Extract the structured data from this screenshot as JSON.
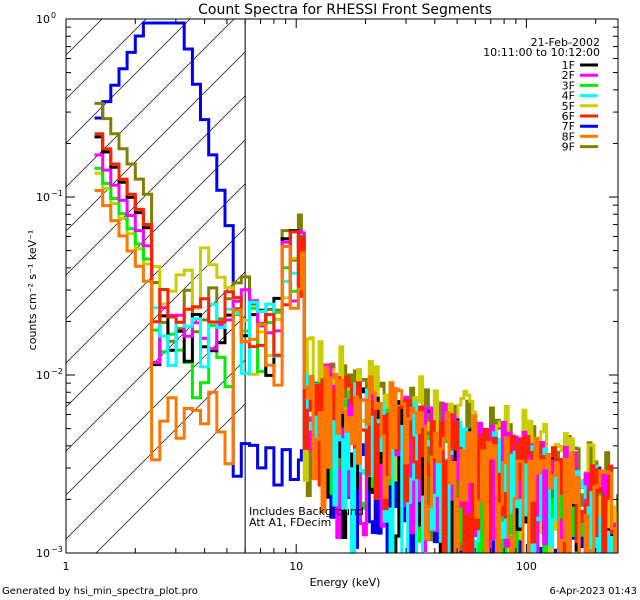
{
  "chart_data": {
    "type": "line",
    "title": "Count Spectra for RHESSI Front Segments",
    "xlabel": "Energy (keV)",
    "ylabel": "counts cm⁻² s⁻¹ keV⁻¹",
    "xscale": "log",
    "yscale": "log",
    "xlim": [
      1,
      250
    ],
    "ylim": [
      0.001,
      1
    ],
    "x_ticks": [
      {
        "v": 1,
        "label": "1"
      },
      {
        "v": 10,
        "label": "10"
      },
      {
        "v": 100,
        "label": "100"
      }
    ],
    "y_ticks": [
      {
        "v": 0.001,
        "base": "10",
        "exp": "−3"
      },
      {
        "v": 0.01,
        "base": "10",
        "exp": "−2"
      },
      {
        "v": 0.1,
        "base": "10",
        "exp": "−1"
      },
      {
        "v": 1,
        "base": "10",
        "exp": "0"
      }
    ],
    "legend_position": "top-right",
    "date": "21-Feb-2002",
    "time_range": "10:11:00 to 10:12:00",
    "annotations": [
      "Includes Background",
      "Att A1, FDecim"
    ],
    "shaded_region_max_energy": 6,
    "series": [
      {
        "name": "1F",
        "color": "#000000",
        "base": 0.24,
        "peak": 0.055,
        "knee": 0.014,
        "tail": 0.006
      },
      {
        "name": "2F",
        "color": "#ff00ff",
        "base": 0.19,
        "peak": 0.06,
        "knee": 0.018,
        "tail": 0.007
      },
      {
        "name": "3F",
        "color": "#00ee00",
        "base": 0.16,
        "peak": 0.05,
        "knee": 0.012,
        "tail": 0.0055
      },
      {
        "name": "4F",
        "color": "#00ffff",
        "base": 0.12,
        "peak": 0.05,
        "knee": 0.018,
        "tail": 0.006
      },
      {
        "name": "5F",
        "color": "#cccc00",
        "base": 0.15,
        "peak": 0.05,
        "knee": 0.035,
        "tail": 0.009
      },
      {
        "name": "6F",
        "color": "#ff2200",
        "base": 0.25,
        "peak": 0.06,
        "knee": 0.02,
        "tail": 0.0065
      },
      {
        "name": "7F",
        "color": "#0000ee",
        "base": 0.25,
        "peak": 0.8,
        "knee": 0.002,
        "tail": 0.004
      },
      {
        "name": "8F",
        "color": "#ff7700",
        "base": 0.12,
        "peak": 0.05,
        "knee": 0.005,
        "tail": 0.007
      },
      {
        "name": "9F",
        "color": "#808000",
        "base": 0.37,
        "peak": 0.07,
        "knee": 0.022,
        "tail": 0.008
      }
    ]
  },
  "footer": {
    "left": "Generated by hsi_min_spectra_plot.pro",
    "right": "6-Apr-2023 01:43"
  }
}
